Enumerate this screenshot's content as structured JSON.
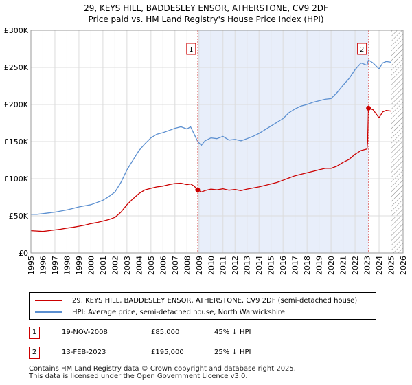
{
  "title_line1": "29, KEYS HILL, BADDESLEY ENSOR, ATHERSTONE, CV9 2DF",
  "title_line2": "Price paid vs. HM Land Registry's House Price Index (HPI)",
  "colors": {
    "property": "#cc0000",
    "hpi": "#5b8fd0",
    "shade": "#e8eefa",
    "marker_line": "#e07070",
    "grid": "#dcdcdc",
    "hatch": "#888888"
  },
  "chart_data": {
    "type": "line",
    "title": "29, KEYS HILL, BADDESLEY ENSOR, ATHERSTONE, CV9 2DF",
    "subtitle": "Price paid vs. HM Land Registry's House Price Index (HPI)",
    "xlabel": "",
    "ylabel": "",
    "xlim": [
      1995.0,
      2026.0
    ],
    "ylim": [
      0,
      300000
    ],
    "grid": true,
    "x_ticks": [
      "1995",
      "1996",
      "1997",
      "1998",
      "1999",
      "2000",
      "2001",
      "2002",
      "2003",
      "2004",
      "2005",
      "2006",
      "2007",
      "2008",
      "2009",
      "2010",
      "2011",
      "2012",
      "2013",
      "2014",
      "2015",
      "2016",
      "2017",
      "2018",
      "2019",
      "2020",
      "2021",
      "2022",
      "2023",
      "2024",
      "2025",
      "2026"
    ],
    "y_ticks": [
      {
        "value": 0,
        "label": "£0"
      },
      {
        "value": 50000,
        "label": "£50K"
      },
      {
        "value": 100000,
        "label": "£100K"
      },
      {
        "value": 150000,
        "label": "£150K"
      },
      {
        "value": 200000,
        "label": "£200K"
      },
      {
        "value": 250000,
        "label": "£250K"
      },
      {
        "value": 300000,
        "label": "£300K"
      }
    ],
    "shaded_period": [
      2008.89,
      2023.12
    ],
    "future_hatch_from": 2025.0,
    "series": [
      {
        "name": "29, KEYS HILL, BADDESLEY ENSOR, ATHERSTONE, CV9 2DF (semi-detached house)",
        "color": "#cc0000",
        "x": [
          1995.0,
          1995.5,
          1996.0,
          1996.5,
          1997.0,
          1997.5,
          1998.0,
          1998.5,
          1999.0,
          1999.5,
          2000.0,
          2000.5,
          2001.0,
          2001.5,
          2002.0,
          2002.5,
          2003.0,
          2003.5,
          2004.0,
          2004.5,
          2005.0,
          2005.5,
          2006.0,
          2006.5,
          2007.0,
          2007.5,
          2008.0,
          2008.3,
          2008.6,
          2008.89,
          2009.2,
          2009.5,
          2010.0,
          2010.5,
          2011.0,
          2011.5,
          2012.0,
          2012.5,
          2013.0,
          2013.5,
          2014.0,
          2014.5,
          2015.0,
          2015.5,
          2016.0,
          2016.5,
          2017.0,
          2017.5,
          2018.0,
          2018.5,
          2019.0,
          2019.5,
          2020.0,
          2020.5,
          2021.0,
          2021.5,
          2022.0,
          2022.5,
          2023.0,
          2023.05,
          2023.12,
          2023.5,
          2024.0,
          2024.3,
          2024.6,
          2025.0
        ],
        "values": [
          30000,
          29500,
          29000,
          30000,
          31000,
          32000,
          33500,
          34500,
          36000,
          37500,
          39500,
          41000,
          43000,
          45000,
          48000,
          55000,
          65000,
          73000,
          80000,
          85000,
          87000,
          89000,
          90000,
          92000,
          93500,
          94000,
          92000,
          93000,
          90000,
          85000,
          82000,
          84000,
          86000,
          85000,
          86500,
          84500,
          85500,
          84000,
          86000,
          87500,
          89000,
          91000,
          93000,
          95000,
          98000,
          101000,
          104000,
          106000,
          108000,
          110000,
          112000,
          114000,
          114000,
          117000,
          122000,
          126000,
          133000,
          138000,
          140000,
          150000,
          195000,
          193000,
          182000,
          190000,
          192000,
          191000
        ]
      },
      {
        "name": "HPI: Average price, semi-detached house, North Warwickshire",
        "color": "#5b8fd0",
        "x": [
          1995.0,
          1995.5,
          1996.0,
          1996.5,
          1997.0,
          1997.5,
          1998.0,
          1998.5,
          1999.0,
          1999.5,
          2000.0,
          2000.5,
          2001.0,
          2001.5,
          2002.0,
          2002.5,
          2003.0,
          2003.5,
          2004.0,
          2004.5,
          2005.0,
          2005.5,
          2006.0,
          2006.5,
          2007.0,
          2007.5,
          2008.0,
          2008.3,
          2008.6,
          2008.89,
          2009.2,
          2009.5,
          2010.0,
          2010.5,
          2011.0,
          2011.5,
          2012.0,
          2012.5,
          2013.0,
          2013.5,
          2014.0,
          2014.5,
          2015.0,
          2015.5,
          2016.0,
          2016.5,
          2017.0,
          2017.5,
          2018.0,
          2018.5,
          2019.0,
          2019.5,
          2020.0,
          2020.5,
          2021.0,
          2021.5,
          2022.0,
          2022.5,
          2023.0,
          2023.12,
          2023.5,
          2024.0,
          2024.3,
          2024.6,
          2025.0
        ],
        "values": [
          52000,
          52000,
          53000,
          54000,
          55000,
          56500,
          58000,
          60000,
          62000,
          63500,
          65000,
          68000,
          71000,
          76000,
          82000,
          95000,
          112000,
          125000,
          138000,
          147000,
          155000,
          160000,
          162000,
          165000,
          168000,
          170000,
          167000,
          170000,
          160000,
          150000,
          145000,
          151000,
          155000,
          154000,
          157000,
          152000,
          153000,
          151000,
          154000,
          157000,
          161000,
          166000,
          171000,
          176000,
          181000,
          189000,
          194000,
          198000,
          200000,
          203000,
          205000,
          207000,
          208000,
          216000,
          226000,
          235000,
          247000,
          256000,
          253000,
          260000,
          256000,
          248000,
          256000,
          258000,
          257000
        ]
      }
    ],
    "annotations": [
      {
        "label": "1",
        "x": 2008.89,
        "value": 85000
      },
      {
        "label": "2",
        "x": 2023.12,
        "value": 195000
      }
    ]
  },
  "legend": {
    "property": "29, KEYS HILL, BADDESLEY ENSOR, ATHERSTONE, CV9 2DF (semi-detached house)",
    "hpi": "HPI: Average price, semi-detached house, North Warwickshire"
  },
  "transactions": [
    {
      "num": "1",
      "date": "19-NOV-2008",
      "price": "£85,000",
      "hpi": "45% ↓ HPI"
    },
    {
      "num": "2",
      "date": "13-FEB-2023",
      "price": "£195,000",
      "hpi": "25% ↓ HPI"
    }
  ],
  "footer_line1": "Contains HM Land Registry data © Crown copyright and database right 2025.",
  "footer_line2": "This data is licensed under the Open Government Licence v3.0."
}
